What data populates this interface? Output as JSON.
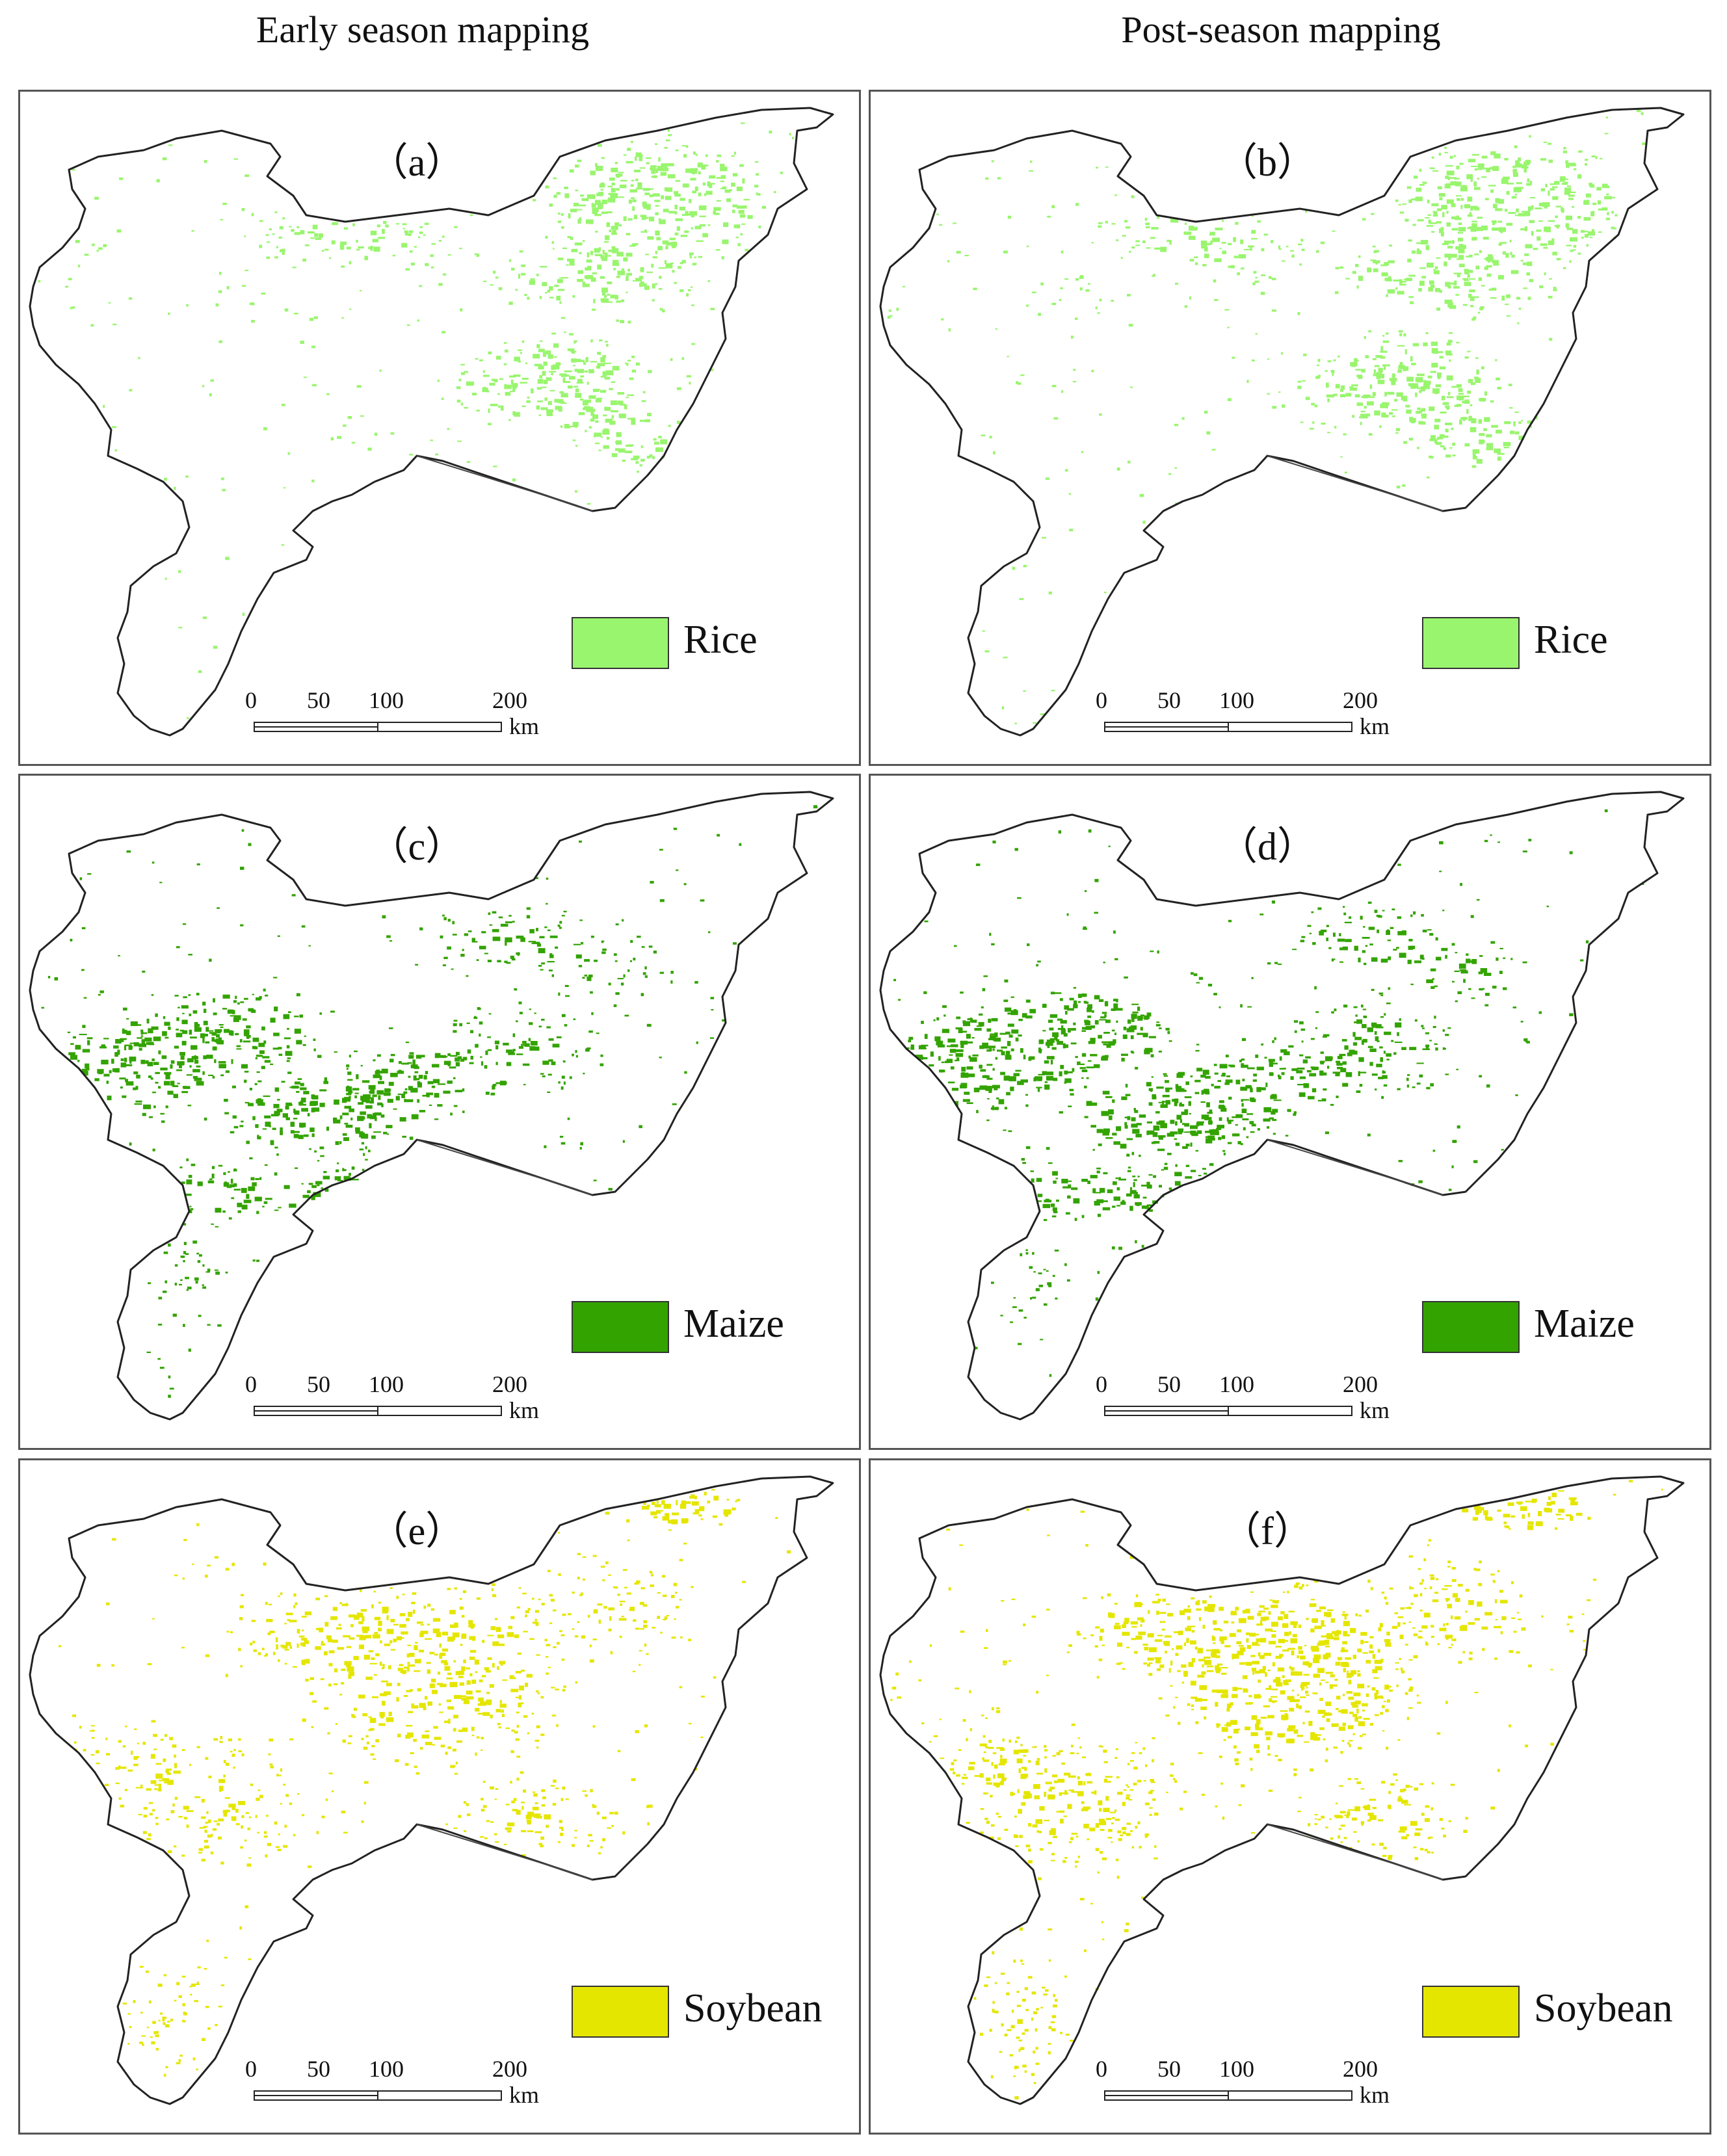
{
  "columns": [
    {
      "title": "Early season mapping"
    },
    {
      "title": "Post-season mapping"
    }
  ],
  "panels": [
    {
      "label": "（a）",
      "legend": "Rice",
      "color": "#99f56e"
    },
    {
      "label": "（b）",
      "legend": "Rice",
      "color": "#99f56e"
    },
    {
      "label": "（c）",
      "legend": "Maize",
      "color": "#33a300"
    },
    {
      "label": "（d）",
      "legend": "Maize",
      "color": "#33a300"
    },
    {
      "label": "（e）",
      "legend": "Soybean",
      "color": "#e5e600"
    },
    {
      "label": "（f）",
      "legend": "Soybean",
      "color": "#e5e600"
    }
  ],
  "scalebar": {
    "ticks": [
      "0",
      "50",
      "100",
      "200"
    ],
    "unit": "km"
  }
}
